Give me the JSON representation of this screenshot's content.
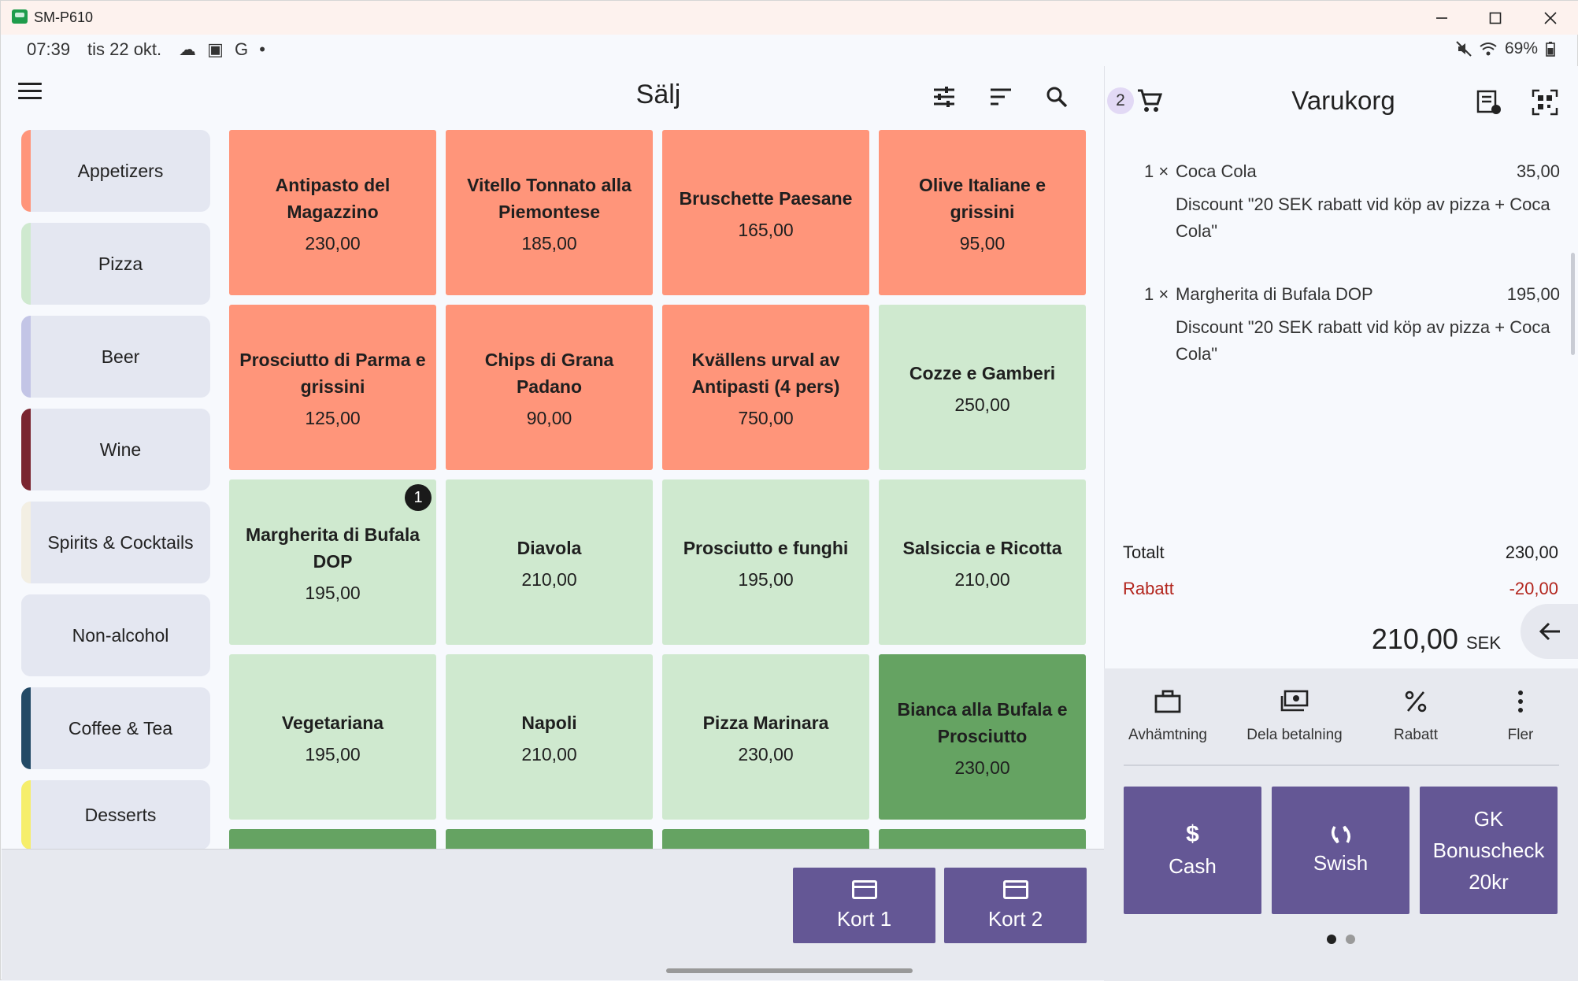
{
  "window": {
    "title": "SM-P610"
  },
  "statusbar": {
    "time": "07:39",
    "date": "tis 22 okt.",
    "icons": "☁ ▣ G •",
    "battery": "69%"
  },
  "header": {
    "title": "Sälj"
  },
  "categories": [
    {
      "label": "Appetizers",
      "color": "#ff957a"
    },
    {
      "label": "Pizza",
      "color": "#cfe9cf"
    },
    {
      "label": "Beer",
      "color": "#c3c5e6"
    },
    {
      "label": "Wine",
      "color": "#7a2530"
    },
    {
      "label": "Spirits & Cocktails",
      "color": "#f3efe3"
    },
    {
      "label": "Non-alcohol",
      "color": "#e4e7f1"
    },
    {
      "label": "Coffee & Tea",
      "color": "#234a66"
    },
    {
      "label": "Desserts",
      "color": "#f6ee6b"
    }
  ],
  "products": [
    {
      "name": "Antipasto del Magazzino",
      "price": "230,00"
    },
    {
      "name": "Vitello Tonnato alla Piemontese",
      "price": "185,00"
    },
    {
      "name": "Bruschette Paesane",
      "price": "165,00"
    },
    {
      "name": "Olive Italiane e grissini",
      "price": "95,00"
    },
    {
      "name": "Prosciutto di Parma e grissini",
      "price": "125,00"
    },
    {
      "name": "Chips di Grana Padano",
      "price": "90,00"
    },
    {
      "name": "Kvällens urval av Antipasti (4 pers)",
      "price": "750,00"
    },
    {
      "name": "Cozze e Gamberi",
      "price": "250,00"
    },
    {
      "name": "Margherita di Bufala DOP",
      "price": "195,00",
      "badge": "1"
    },
    {
      "name": "Diavola",
      "price": "210,00"
    },
    {
      "name": "Prosciutto e funghi",
      "price": "195,00"
    },
    {
      "name": "Salsiccia e Ricotta",
      "price": "210,00"
    },
    {
      "name": "Vegetariana",
      "price": "195,00"
    },
    {
      "name": "Napoli",
      "price": "210,00"
    },
    {
      "name": "Pizza Marinara",
      "price": "230,00"
    },
    {
      "name": "Bianca alla Bufala e Prosciutto",
      "price": "230,00"
    }
  ],
  "bottom": {
    "kort1": "Kort 1",
    "kort2": "Kort 2"
  },
  "cart": {
    "count": "2",
    "title": "Varukorg",
    "items": [
      {
        "qty": "1 ×",
        "name": "Coca Cola",
        "price": "35,00",
        "discount": "Discount \"20 SEK rabatt vid köp av pizza + Coca Cola\""
      },
      {
        "qty": "1 ×",
        "name": "Margherita di Bufala DOP",
        "price": "195,00",
        "discount": "Discount \"20 SEK rabatt vid köp av pizza + Coca Cola\""
      }
    ],
    "total_label": "Totalt",
    "total_value": "230,00",
    "discount_label": "Rabatt",
    "discount_value": "-20,00",
    "grand_total": "210,00",
    "currency": "SEK",
    "discount_color": "#b3261e"
  },
  "actions": {
    "pickup": "Avhämtning",
    "split": "Dela betalning",
    "discount": "Rabatt",
    "more": "Fler"
  },
  "payment": {
    "cash_icon": "$",
    "cash": "Cash",
    "swish": "Swish",
    "gk": "GK Bonuscheck 20kr"
  },
  "colors": {
    "accent": "#645795",
    "appetizer": "#ff957a",
    "pizza_light": "#cfe9cf",
    "pizza_dark": "#65a362"
  }
}
